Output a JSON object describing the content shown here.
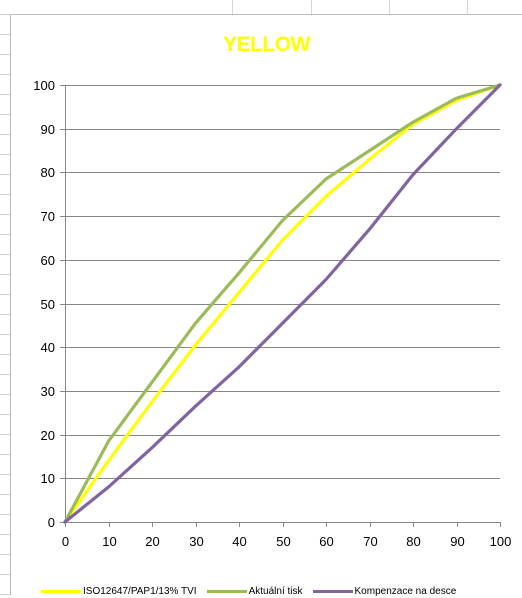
{
  "chart_data": {
    "type": "line",
    "title": "YELLOW",
    "xlabel": "",
    "ylabel": "",
    "xlim": [
      0,
      100
    ],
    "ylim": [
      0,
      100
    ],
    "x_ticks": [
      0,
      10,
      20,
      30,
      40,
      50,
      60,
      70,
      80,
      90,
      100
    ],
    "y_ticks": [
      0,
      10,
      20,
      30,
      40,
      50,
      60,
      70,
      80,
      90,
      100
    ],
    "grid": "horizontal",
    "legend_position": "bottom",
    "series": [
      {
        "name": "ISO12647/PAP1/13% TVI",
        "color": "#ffff00",
        "x": [
          0,
          10,
          20,
          30,
          40,
          50,
          60,
          70,
          80,
          90,
          100
        ],
        "y": [
          0,
          14,
          27.5,
          40.5,
          52.5,
          64.5,
          74.5,
          83,
          91,
          96.5,
          100
        ]
      },
      {
        "name": "Aktuální tisk",
        "color": "#9bbb59",
        "x": [
          0,
          10,
          20,
          30,
          40,
          50,
          60,
          70,
          80,
          90,
          100
        ],
        "y": [
          0,
          18.5,
          32,
          45.5,
          57,
          69,
          78.5,
          85,
          91.5,
          97,
          100
        ]
      },
      {
        "name": "Kompenzace na desce",
        "color": "#8064a2",
        "x": [
          0,
          10,
          20,
          30,
          40,
          50,
          60,
          70,
          80,
          90,
          100
        ],
        "y": [
          0,
          8,
          17,
          26.5,
          35.5,
          45.5,
          55.5,
          67,
          79.5,
          90,
          100
        ]
      }
    ]
  },
  "colors": {
    "title": "#ffff00",
    "grid": "#868686",
    "axis": "#868686"
  }
}
